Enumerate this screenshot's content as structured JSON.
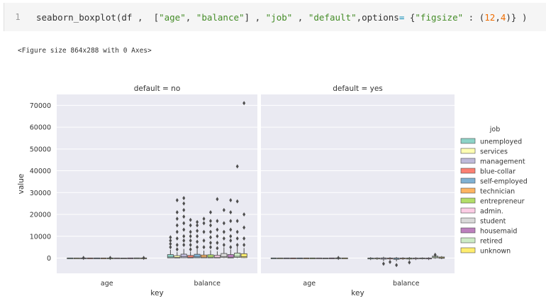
{
  "code_cell": {
    "line_number": "1",
    "tokens": [
      {
        "t": "seaborn_boxplot(df ,  [",
        "c": ""
      },
      {
        "t": "\"age\"",
        "c": "str"
      },
      {
        "t": ", ",
        "c": ""
      },
      {
        "t": "\"balance\"",
        "c": "str"
      },
      {
        "t": "] , ",
        "c": ""
      },
      {
        "t": "\"job\"",
        "c": "str"
      },
      {
        "t": " , ",
        "c": ""
      },
      {
        "t": "\"default\"",
        "c": "str"
      },
      {
        "t": ",options",
        "c": ""
      },
      {
        "t": "=",
        "c": "op"
      },
      {
        "t": " {",
        "c": ""
      },
      {
        "t": "\"figsize\"",
        "c": "str"
      },
      {
        "t": " : (",
        "c": ""
      },
      {
        "t": "12",
        "c": "num"
      },
      {
        "t": ",",
        "c": ""
      },
      {
        "t": "4",
        "c": "num"
      },
      {
        "t": ")} )",
        "c": ""
      }
    ]
  },
  "output": {
    "text": "<Figure size 864x288 with 0 Axes>"
  },
  "chart_data": {
    "type": "box",
    "facet_variable": "default",
    "panels": [
      {
        "title": "default = no",
        "facet": "no"
      },
      {
        "title": "default = yes",
        "facet": "yes"
      }
    ],
    "categories": [
      "age",
      "balance"
    ],
    "xlabel": "key",
    "ylabel": "value",
    "yticks": [
      0,
      10000,
      20000,
      30000,
      40000,
      50000,
      60000,
      70000
    ],
    "ylim": [
      -7000,
      75000
    ],
    "legend": {
      "title": "job",
      "placement": "right",
      "entries": [
        {
          "label": "unemployed",
          "color": "#8dd3c7"
        },
        {
          "label": "services",
          "color": "#ffffb3"
        },
        {
          "label": "management",
          "color": "#bebada"
        },
        {
          "label": "blue-collar",
          "color": "#fb8072"
        },
        {
          "label": "self-employed",
          "color": "#80b1d3"
        },
        {
          "label": "technician",
          "color": "#fdb462"
        },
        {
          "label": "entrepreneur",
          "color": "#b3de69"
        },
        {
          "label": "admin.",
          "color": "#fccde5"
        },
        {
          "label": "student",
          "color": "#d9d9d9"
        },
        {
          "label": "housemaid",
          "color": "#bc80bd"
        },
        {
          "label": "retired",
          "color": "#ccebc5"
        },
        {
          "label": "unknown",
          "color": "#ffed6f"
        }
      ]
    },
    "boxes": {
      "no": {
        "age": [
          [
            29,
            35,
            41,
            48,
            60
          ],
          [
            28,
            32,
            38,
            44,
            62
          ],
          [
            28,
            33,
            39,
            48,
            70
          ],
          [
            27,
            33,
            39,
            47,
            62
          ],
          [
            27,
            34,
            41,
            50,
            70
          ],
          [
            26,
            32,
            37,
            45,
            62
          ],
          [
            27,
            35,
            41,
            49,
            70
          ],
          [
            25,
            32,
            38,
            46,
            65
          ],
          [
            18,
            22,
            25,
            28,
            38
          ],
          [
            24,
            37,
            45,
            52,
            75
          ],
          [
            50,
            56,
            59,
            65,
            90
          ],
          [
            30,
            37,
            47,
            55,
            80
          ]
        ],
        "balance": [
          [
            0,
            100,
            500,
            1600,
            3800
          ],
          [
            0,
            50,
            350,
            1100,
            2700
          ],
          [
            0,
            150,
            600,
            1800,
            4200
          ],
          [
            0,
            60,
            400,
            1200,
            2900
          ],
          [
            0,
            130,
            550,
            1750,
            4100
          ],
          [
            0,
            100,
            480,
            1400,
            3400
          ],
          [
            0,
            90,
            450,
            1500,
            3600
          ],
          [
            0,
            80,
            420,
            1300,
            3100
          ],
          [
            0,
            250,
            700,
            2100,
            4900
          ],
          [
            0,
            70,
            400,
            1600,
            3900
          ],
          [
            0,
            300,
            800,
            2300,
            5300
          ],
          [
            0,
            200,
            680,
            2000,
            4600
          ]
        ]
      },
      "yes": {
        "age": [
          [
            30,
            35,
            40,
            46,
            58
          ],
          [
            28,
            32,
            37,
            42,
            55
          ],
          [
            30,
            34,
            39,
            46,
            60
          ],
          [
            28,
            33,
            38,
            44,
            57
          ],
          [
            30,
            36,
            41,
            48,
            60
          ],
          [
            28,
            33,
            37,
            43,
            55
          ],
          [
            30,
            35,
            41,
            47,
            60
          ],
          [
            27,
            32,
            37,
            43,
            56
          ],
          [
            20,
            23,
            26,
            29,
            35
          ],
          [
            28,
            38,
            45,
            50,
            60
          ],
          [
            52,
            56,
            60,
            66,
            80
          ],
          [
            32,
            38,
            45,
            52,
            60
          ]
        ],
        "balance": [
          [
            -900,
            -400,
            -100,
            0,
            400
          ],
          [
            -800,
            -350,
            -80,
            0,
            300
          ],
          [
            -1400,
            -500,
            -100,
            50,
            600
          ],
          [
            -900,
            -400,
            -90,
            10,
            400
          ],
          [
            -1500,
            -600,
            -150,
            20,
            500
          ],
          [
            -800,
            -350,
            -80,
            0,
            350
          ],
          [
            -1000,
            -450,
            -120,
            30,
            450
          ],
          [
            -900,
            -400,
            -100,
            0,
            350
          ],
          [
            -600,
            -250,
            -50,
            20,
            300
          ],
          [
            -900,
            -350,
            -90,
            0,
            350
          ],
          [
            -300,
            100,
            500,
            900,
            1300
          ],
          [
            -500,
            -100,
            150,
            500,
            900
          ]
        ]
      }
    },
    "outliers": {
      "no": {
        "age": [
          [],
          [],
          [
            86
          ],
          [],
          [],
          [],
          [
            85
          ],
          [],
          [],
          [],
          [],
          [
            95
          ]
        ],
        "balance": [
          [
            5000,
            6500,
            8000,
            9500
          ],
          [
            4000,
            6000,
            9000,
            12000,
            15000,
            18000,
            21000,
            26500
          ],
          [
            6000,
            8000,
            10000,
            13000,
            16000,
            19000,
            22000,
            25000,
            27500
          ],
          [
            4000,
            6000,
            8000,
            10000,
            12000,
            15000,
            17500
          ],
          [
            5000,
            7500,
            10000,
            12500,
            15000,
            16500
          ],
          [
            5000,
            8000,
            12000,
            16000,
            18000
          ],
          [
            5000,
            7000,
            9500,
            12000,
            15000,
            17000,
            21000
          ],
          [
            4500,
            7000,
            10000,
            13000,
            17000,
            27000
          ],
          [
            6000,
            9000,
            12000,
            16000,
            22000
          ],
          [
            5000,
            8000,
            10000,
            13000,
            17000,
            21000,
            26500
          ],
          [
            6000,
            9000,
            12000,
            17000,
            26000,
            42000
          ],
          [
            6000,
            9000,
            14000,
            20000,
            71000
          ]
        ]
      },
      "yes": {
        "age": [
          [],
          [],
          [],
          [],
          [],
          [],
          [],
          [],
          [],
          [],
          [
            92
          ],
          []
        ],
        "balance": [
          [],
          [],
          [
            -2600
          ],
          [
            -1800
          ],
          [
            -3200
          ],
          [],
          [
            -2000
          ],
          [],
          [],
          [],
          [
            1500
          ],
          []
        ]
      }
    }
  }
}
